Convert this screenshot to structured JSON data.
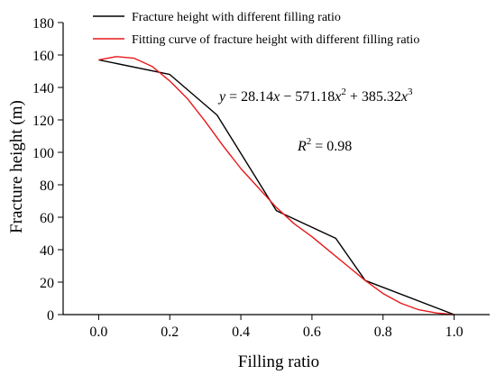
{
  "chart_data": {
    "type": "line",
    "xlabel": "Filling ratio",
    "ylabel": "Fracture height (m)",
    "xlim": [
      -0.1,
      1.1
    ],
    "ylim": [
      0,
      180
    ],
    "x_ticks": [
      "0.0",
      "0.2",
      "0.4",
      "0.6",
      "0.8",
      "1.0"
    ],
    "y_ticks": [
      "0",
      "20",
      "40",
      "60",
      "80",
      "100",
      "120",
      "140",
      "160",
      "180"
    ],
    "legend_position": "top",
    "series": [
      {
        "name": "Fracture height with different filling ratio",
        "color": "#000000",
        "x": [
          0.0,
          0.2,
          0.333,
          0.5,
          0.667,
          0.75,
          1.0
        ],
        "y": [
          157,
          148,
          123,
          64,
          47,
          21,
          0
        ]
      },
      {
        "name": "Fitting curve of fracture height with different filling ratio",
        "color": "#e8191c",
        "x": [
          0.0,
          0.05,
          0.1,
          0.15,
          0.2,
          0.25,
          0.3,
          0.35,
          0.4,
          0.45,
          0.5,
          0.55,
          0.6,
          0.65,
          0.7,
          0.75,
          0.8,
          0.85,
          0.9,
          0.95,
          1.0
        ],
        "y": [
          157,
          159,
          158,
          153,
          144,
          133,
          119,
          104,
          90,
          78,
          66,
          56,
          48,
          39,
          30,
          21,
          13,
          7,
          3,
          1,
          0
        ]
      }
    ],
    "annotations": {
      "equation": {
        "y": "y",
        "eq1": " = 28.14",
        "x1": "x",
        "eq2": " − 571.18",
        "x2": "x",
        "pow2": "2",
        "eq3": " + 385.32",
        "x3": "x",
        "pow3": "3"
      },
      "r2": {
        "r": "R",
        "pow": "2",
        "value": " = 0.98"
      }
    }
  }
}
